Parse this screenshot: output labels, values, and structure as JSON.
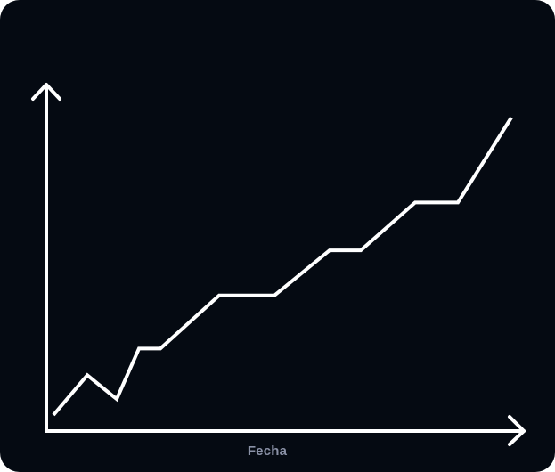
{
  "theme": {
    "background": "#050a12",
    "line_color": "#ffffff",
    "axis_color": "#ffffff",
    "label_color": "#8a91a6"
  },
  "chart_data": {
    "type": "line",
    "title": "",
    "xlabel": "Fecha",
    "ylabel": "",
    "grid": false,
    "series": [
      {
        "values": [
          0,
          15,
          6,
          25,
          25,
          45,
          45,
          62,
          62,
          80,
          80,
          112
        ]
      }
    ],
    "x": [
      0,
      1,
      2,
      3,
      4,
      5,
      6,
      7,
      8,
      9,
      10,
      11
    ],
    "ylim": [
      0,
      112
    ]
  }
}
